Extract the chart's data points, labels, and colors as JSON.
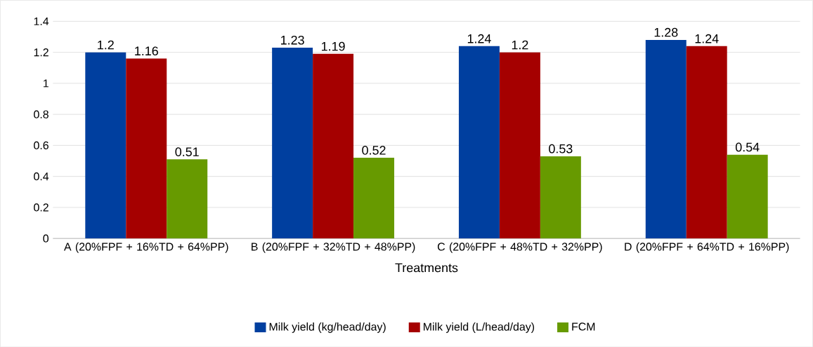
{
  "chart_data": {
    "type": "bar",
    "xlabel": "Treatments",
    "categories": [
      "A (20%FPF + 16%TD + 64%PP)",
      "B (20%FPF + 32%TD + 48%PP)",
      "C (20%FPF + 48%TD + 32%PP)",
      "D (20%FPF + 64%TD + 16%PP)"
    ],
    "series": [
      {
        "name": "Milk yield (kg/head/day)",
        "color": "#003f9f",
        "values": [
          1.2,
          1.23,
          1.24,
          1.28
        ]
      },
      {
        "name": "Milk yield (L/head/day)",
        "color": "#a50000",
        "values": [
          1.16,
          1.19,
          1.2,
          1.24
        ]
      },
      {
        "name": "FCM",
        "color": "#679a00",
        "values": [
          0.51,
          0.52,
          0.53,
          0.54
        ]
      }
    ],
    "ylim": [
      0,
      1.4
    ],
    "yticks": [
      0,
      0.2,
      0.4,
      0.6,
      0.8,
      1,
      1.2,
      1.4
    ],
    "grid": "y",
    "legend": "bottom",
    "data_labels": true
  }
}
